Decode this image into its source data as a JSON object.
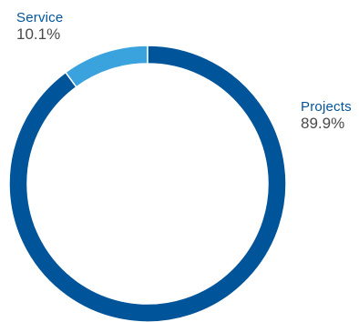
{
  "chart_data": {
    "type": "pie",
    "style": "donut",
    "slices": [
      {
        "name": "Service",
        "value": 10.1,
        "label": "10.1%",
        "color": "#3aa3dd"
      },
      {
        "name": "Projects",
        "value": 89.9,
        "label": "89.9%",
        "color": "#00549a"
      }
    ],
    "start_angle_deg": 0,
    "direction": "counterclockwise",
    "label_color": "#00549a",
    "value_label_color": "#4a4a4a",
    "separator_color": "#ffffff"
  }
}
